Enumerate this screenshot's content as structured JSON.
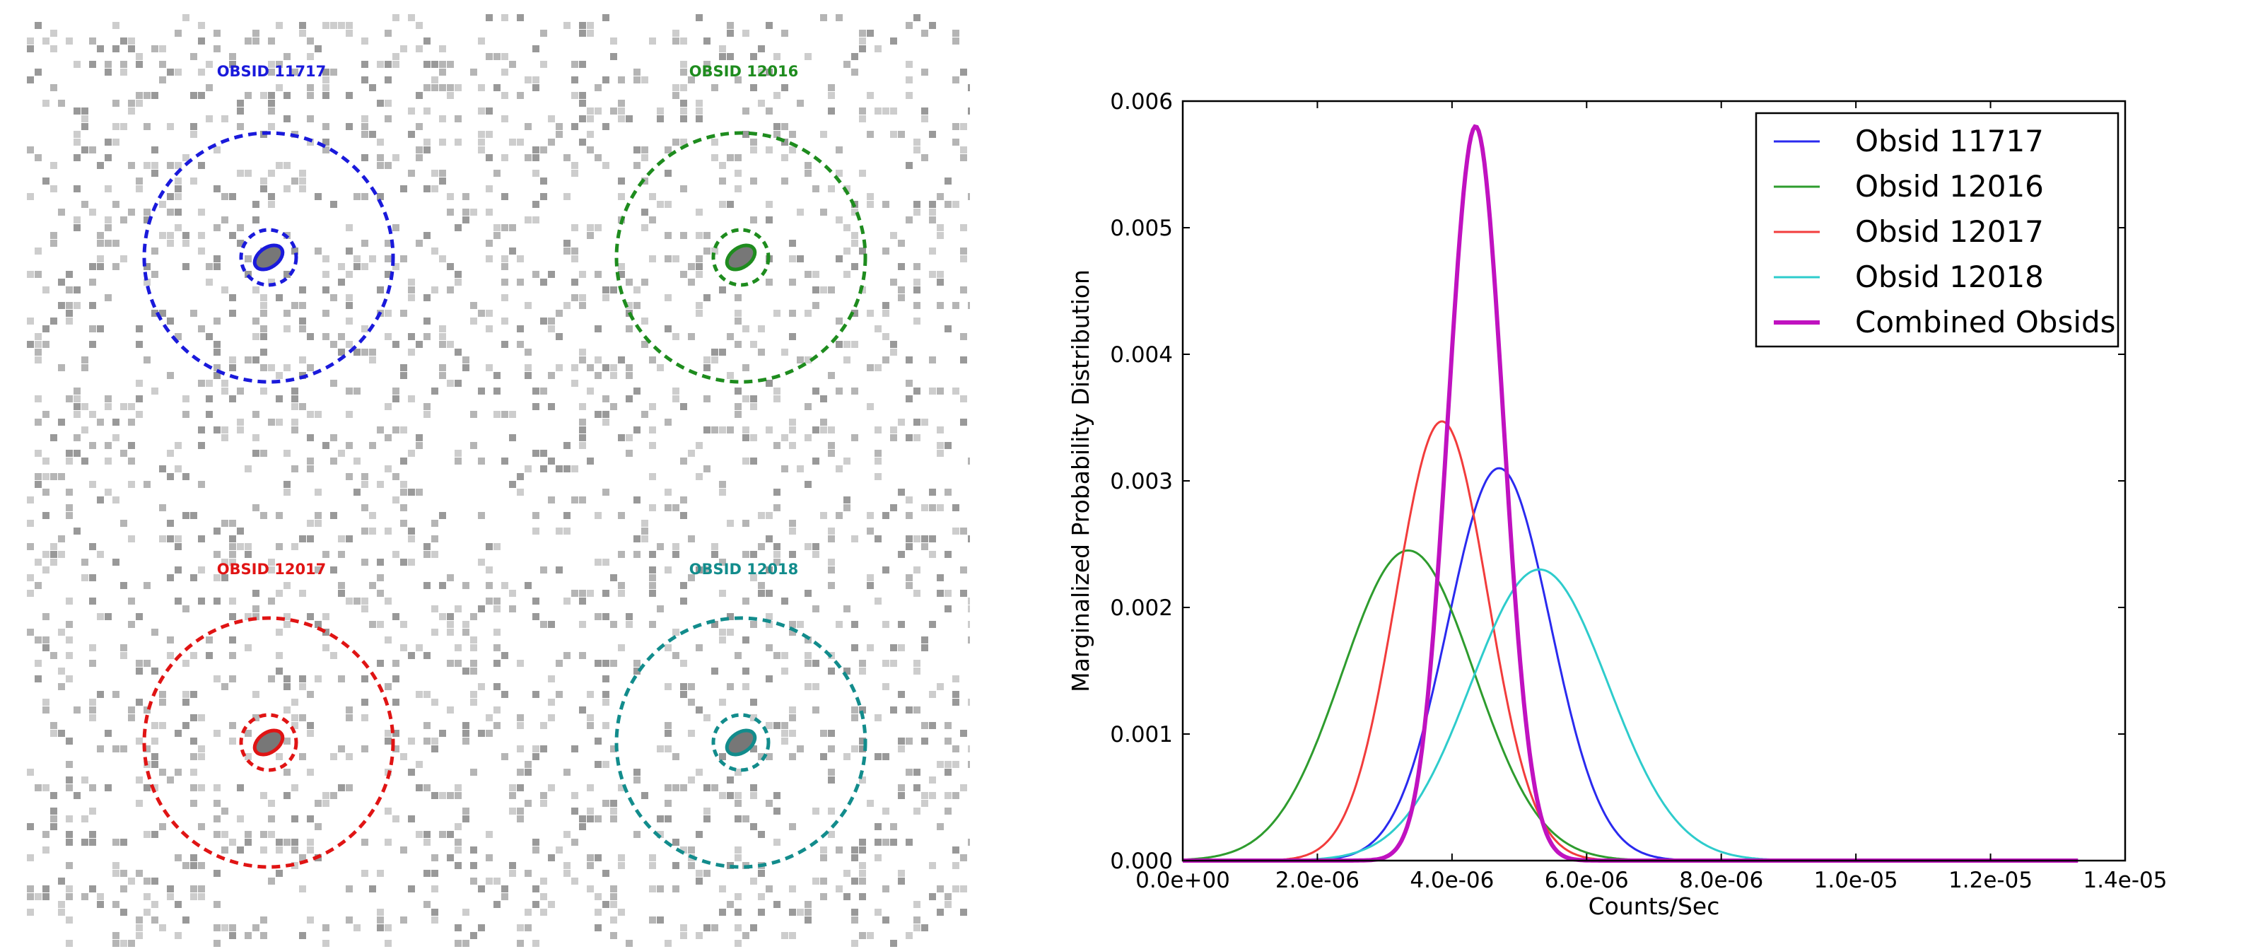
{
  "images": {
    "panels": [
      {
        "label": "OBSID 11717",
        "color": "#1a1adb"
      },
      {
        "label": "OBSID 12016",
        "color": "#1e8c1e"
      },
      {
        "label": "OBSID 12017",
        "color": "#e01414"
      },
      {
        "label": "OBSID 12018",
        "color": "#128c8c"
      }
    ]
  },
  "chart_data": {
    "type": "line",
    "title": "",
    "xlabel": "Counts/Sec",
    "ylabel": "Marginalized Probability Distribution",
    "xlim": [
      0,
      1.4e-05
    ],
    "ylim": [
      0,
      0.006
    ],
    "x_ticks": [
      0,
      2e-06,
      4e-06,
      6e-06,
      8e-06,
      1e-05,
      1.2e-05,
      1.4e-05
    ],
    "x_tick_labels": [
      "0.0e+00",
      "2.0e-06",
      "4.0e-06",
      "6.0e-06",
      "8.0e-06",
      "1.0e-05",
      "1.2e-05",
      "1.4e-05"
    ],
    "y_ticks": [
      0,
      0.001,
      0.002,
      0.003,
      0.004,
      0.005,
      0.006
    ],
    "y_tick_labels": [
      "0.000",
      "0.001",
      "0.002",
      "0.003",
      "0.004",
      "0.005",
      "0.006"
    ],
    "grid": false,
    "legend_position": "top-right",
    "series": [
      {
        "name": "Obsid 11717",
        "color": "#2a2aef",
        "peak_x": 4.7e-06,
        "peak_y": 0.0031,
        "sigma": 7.6e-07,
        "linewidth": "thin"
      },
      {
        "name": "Obsid 12016",
        "color": "#2e9c2e",
        "peak_x": 3.35e-06,
        "peak_y": 0.00245,
        "sigma": 9.8e-07,
        "linewidth": "thin"
      },
      {
        "name": "Obsid 12017",
        "color": "#f23c3c",
        "peak_x": 3.85e-06,
        "peak_y": 0.00347,
        "sigma": 6.8e-07,
        "linewidth": "thin"
      },
      {
        "name": "Obsid 12018",
        "color": "#2ecccc",
        "peak_x": 5.3e-06,
        "peak_y": 0.0023,
        "sigma": 1.02e-06,
        "linewidth": "thin"
      },
      {
        "name": "Combined Obsids",
        "color": "#c012c0",
        "peak_x": 4.35e-06,
        "peak_y": 0.0058,
        "sigma": 4.1e-07,
        "linewidth": "thick"
      }
    ]
  }
}
